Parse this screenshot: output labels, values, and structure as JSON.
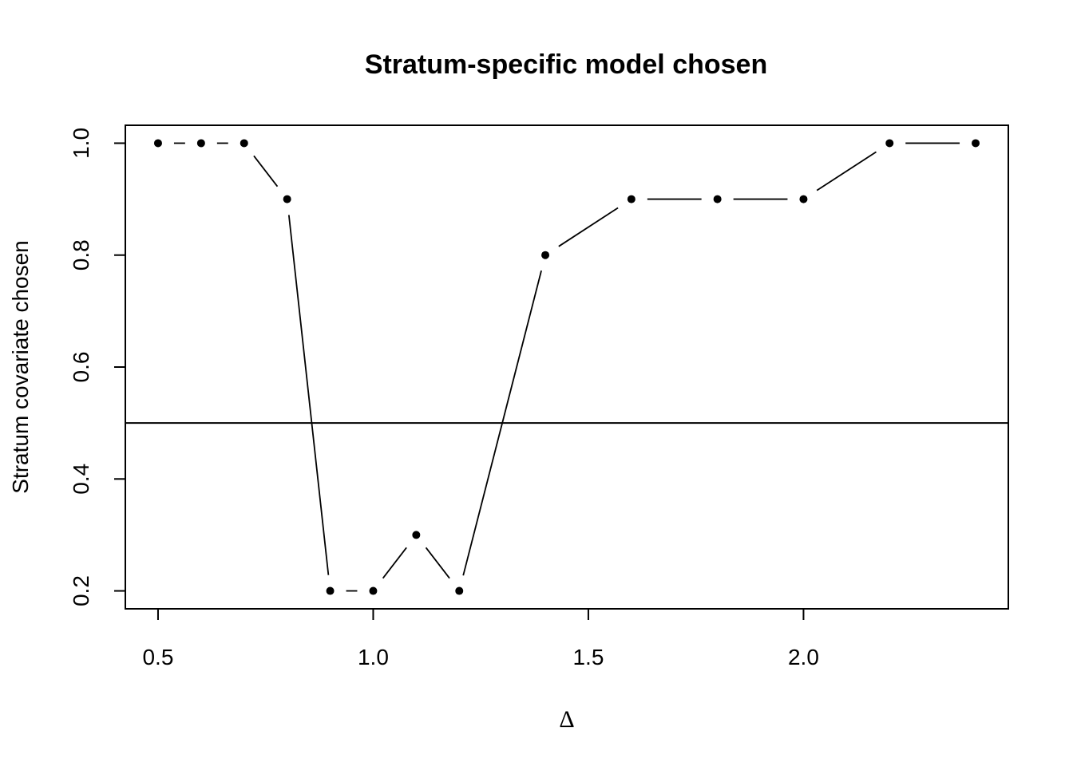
{
  "chart_data": {
    "type": "line",
    "title": "Stratum-specific model chosen",
    "xlabel": "Δ",
    "ylabel": "Stratum covariate chosen",
    "x": [
      0.5,
      0.6,
      0.7,
      0.8,
      0.9,
      1.0,
      1.1,
      1.2,
      1.4,
      1.6,
      1.8,
      2.0,
      2.2,
      2.4
    ],
    "series": [
      {
        "values": [
          1.0,
          1.0,
          1.0,
          0.9,
          0.2,
          0.2,
          0.3,
          0.2,
          0.8,
          0.9,
          0.9,
          0.9,
          1.0,
          1.0
        ]
      }
    ],
    "xlim": [
      0.424,
      2.476
    ],
    "ylim": [
      0.168,
      1.032
    ],
    "xticks": [
      0.5,
      1.0,
      1.5,
      2.0
    ],
    "xtick_labels": [
      "0.5",
      "1.0",
      "1.5",
      "2.0"
    ],
    "yticks": [
      0.2,
      0.4,
      0.6,
      0.8,
      1.0
    ],
    "ytick_labels": [
      "0.2",
      "0.4",
      "0.6",
      "0.8",
      "1.0"
    ],
    "hline": 0.5,
    "grid": false,
    "line_style": "points-connected-by-gapped-lines"
  }
}
